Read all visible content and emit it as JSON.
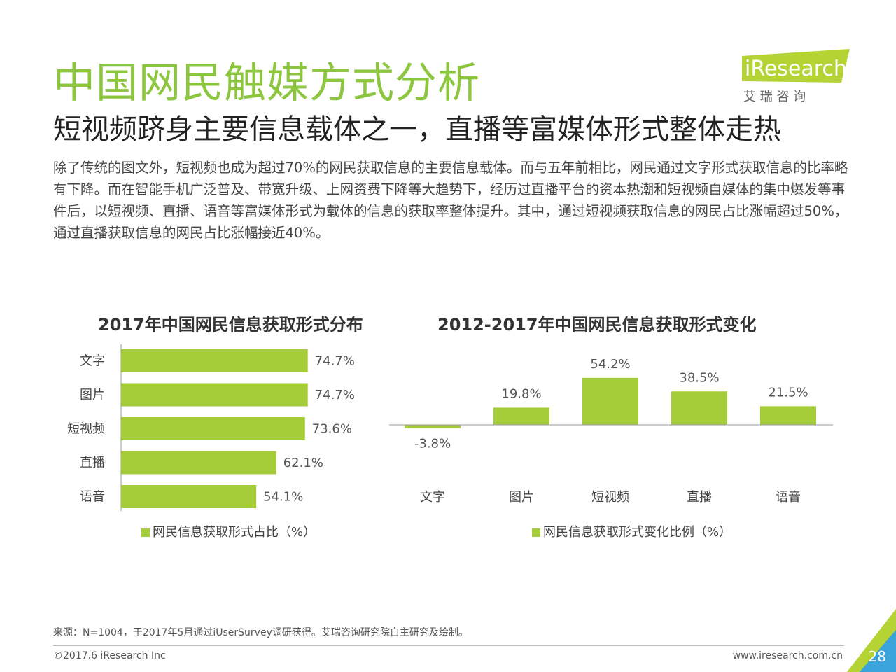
{
  "header": {
    "title": "中国网民触媒方式分析",
    "subtitle": "短视频跻身主要信息载体之一，直播等富媒体形式整体走热",
    "description": "除了传统的图文外，短视频也成为超过70%的网民获取信息的主要信息载体。而与五年前相比，网民通过文字形式获取信息的比率略有下降。而在智能手机广泛普及、带宽升级、上网资费下降等大趋势下，经历过直播平台的资本热潮和短视频自媒体的集中爆发等事件后，以短视频、直播、语音等富媒体形式为载体的信息的获取率整体提升。其中，通过短视频获取信息的网民占比涨幅超过50%，通过直播获取信息的网民占比涨幅接近40%。"
  },
  "logo": {
    "brand": "iResearch",
    "chinese": "艾 瑞 咨 询",
    "color": "#b5d334"
  },
  "colors": {
    "accent": "#8cc63f",
    "bar": "#a4cd39"
  },
  "chart_data": [
    {
      "type": "bar",
      "orientation": "horizontal",
      "title": "2017年中国网民信息获取形式分布",
      "categories": [
        "文字",
        "图片",
        "短视频",
        "直播",
        "语音"
      ],
      "series": [
        {
          "name": "网民信息获取形式占比（%）",
          "values": [
            74.7,
            74.7,
            73.6,
            62.1,
            54.1
          ]
        }
      ],
      "value_labels": [
        "74.7%",
        "74.7%",
        "73.6%",
        "62.1%",
        "54.1%"
      ],
      "xlim": [
        0,
        100
      ],
      "legend": "bottom",
      "grid": false
    },
    {
      "type": "bar",
      "orientation": "vertical",
      "title": "2012-2017年中国网民信息获取形式变化",
      "categories": [
        "文字",
        "图片",
        "短视频",
        "直播",
        "语音"
      ],
      "series": [
        {
          "name": "网民信息获取形式变化比例（%）",
          "values": [
            -3.8,
            19.8,
            54.2,
            38.5,
            21.5
          ]
        }
      ],
      "value_labels": [
        "-3.8%",
        "19.8%",
        "54.2%",
        "38.5%",
        "21.5%"
      ],
      "ylim": [
        -10,
        70
      ],
      "legend": "bottom",
      "grid": false
    }
  ],
  "footer": {
    "source": "来源：N=1004，于2017年5月通过iUserSurvey调研获得。艾瑞咨询研究院自主研究及绘制。",
    "copyright": "©2017.6 iResearch Inc",
    "website": "www.iresearch.com.cn",
    "page_number": "28"
  }
}
